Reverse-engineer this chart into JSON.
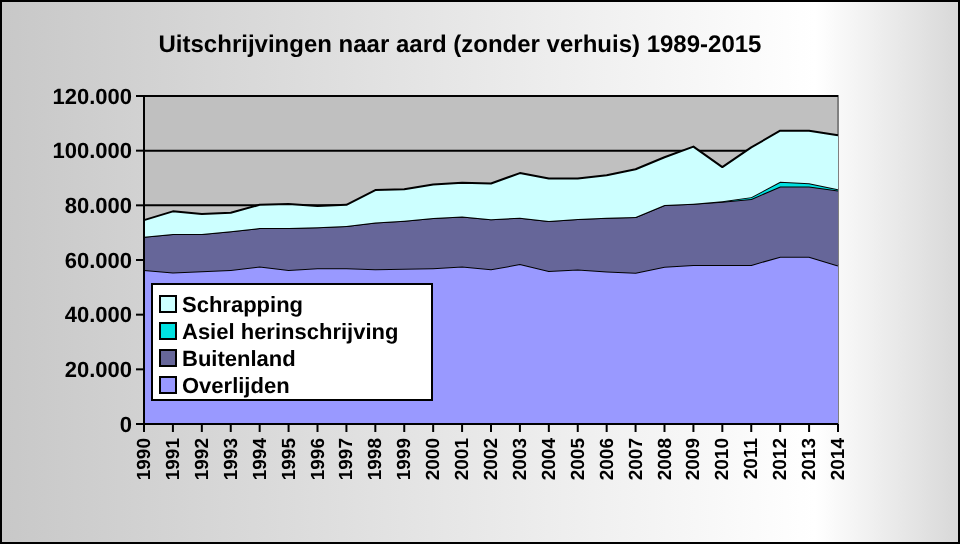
{
  "chart_data": {
    "type": "area",
    "stacked": true,
    "title": "Uitschrijvingen naar aard (zonder verhuis) 1989-2015",
    "categories": [
      "1990",
      "1991",
      "1992",
      "1993",
      "1994",
      "1995",
      "1996",
      "1997",
      "1998",
      "1999",
      "2000",
      "2001",
      "2002",
      "2003",
      "2004",
      "2005",
      "2006",
      "2007",
      "2008",
      "2009",
      "2010",
      "2011",
      "2012",
      "2013",
      "2014"
    ],
    "series": [
      {
        "name": "Overlijden",
        "color": "#9999ff",
        "values": [
          56300,
          55400,
          55900,
          56300,
          57600,
          56300,
          57000,
          57000,
          56600,
          56800,
          57000,
          57600,
          56600,
          58500,
          56000,
          56500,
          55800,
          55300,
          57500,
          58200,
          58200,
          58200,
          61200,
          61200,
          58000
        ]
      },
      {
        "name": "Buitenland",
        "color": "#666699",
        "values": [
          12200,
          14100,
          13600,
          14200,
          14100,
          15400,
          15000,
          15400,
          17100,
          17600,
          18400,
          18300,
          18300,
          17000,
          18300,
          18500,
          19700,
          20400,
          22600,
          22400,
          23100,
          24100,
          25700,
          25700,
          27400
        ]
      },
      {
        "name": "Asiel herinschrijving",
        "color": "#00e0e0",
        "values": [
          0,
          0,
          0,
          0,
          0,
          0,
          0,
          0,
          0,
          0,
          0,
          0,
          0,
          0,
          0,
          0,
          0,
          0,
          0,
          0,
          200,
          700,
          1700,
          1200,
          500
        ]
      },
      {
        "name": "Schrapping",
        "color": "#ccffff",
        "values": [
          6100,
          8300,
          7300,
          6800,
          8500,
          8800,
          7800,
          7800,
          11900,
          11500,
          12200,
          12400,
          13100,
          16300,
          15500,
          14800,
          15500,
          17500,
          17500,
          20900,
          12500,
          18200,
          18700,
          19200,
          19700
        ]
      }
    ],
    "ylim": [
      0,
      120000
    ],
    "yticks": [
      {
        "value": 0,
        "label": "0"
      },
      {
        "value": 20000,
        "label": "20.000"
      },
      {
        "value": 40000,
        "label": "40.000"
      },
      {
        "value": 60000,
        "label": "60.000"
      },
      {
        "value": 80000,
        "label": "80.000"
      },
      {
        "value": 100000,
        "label": "100.000"
      },
      {
        "value": 120000,
        "label": "120.000"
      }
    ],
    "grid": "y",
    "legend": "bottom left"
  }
}
